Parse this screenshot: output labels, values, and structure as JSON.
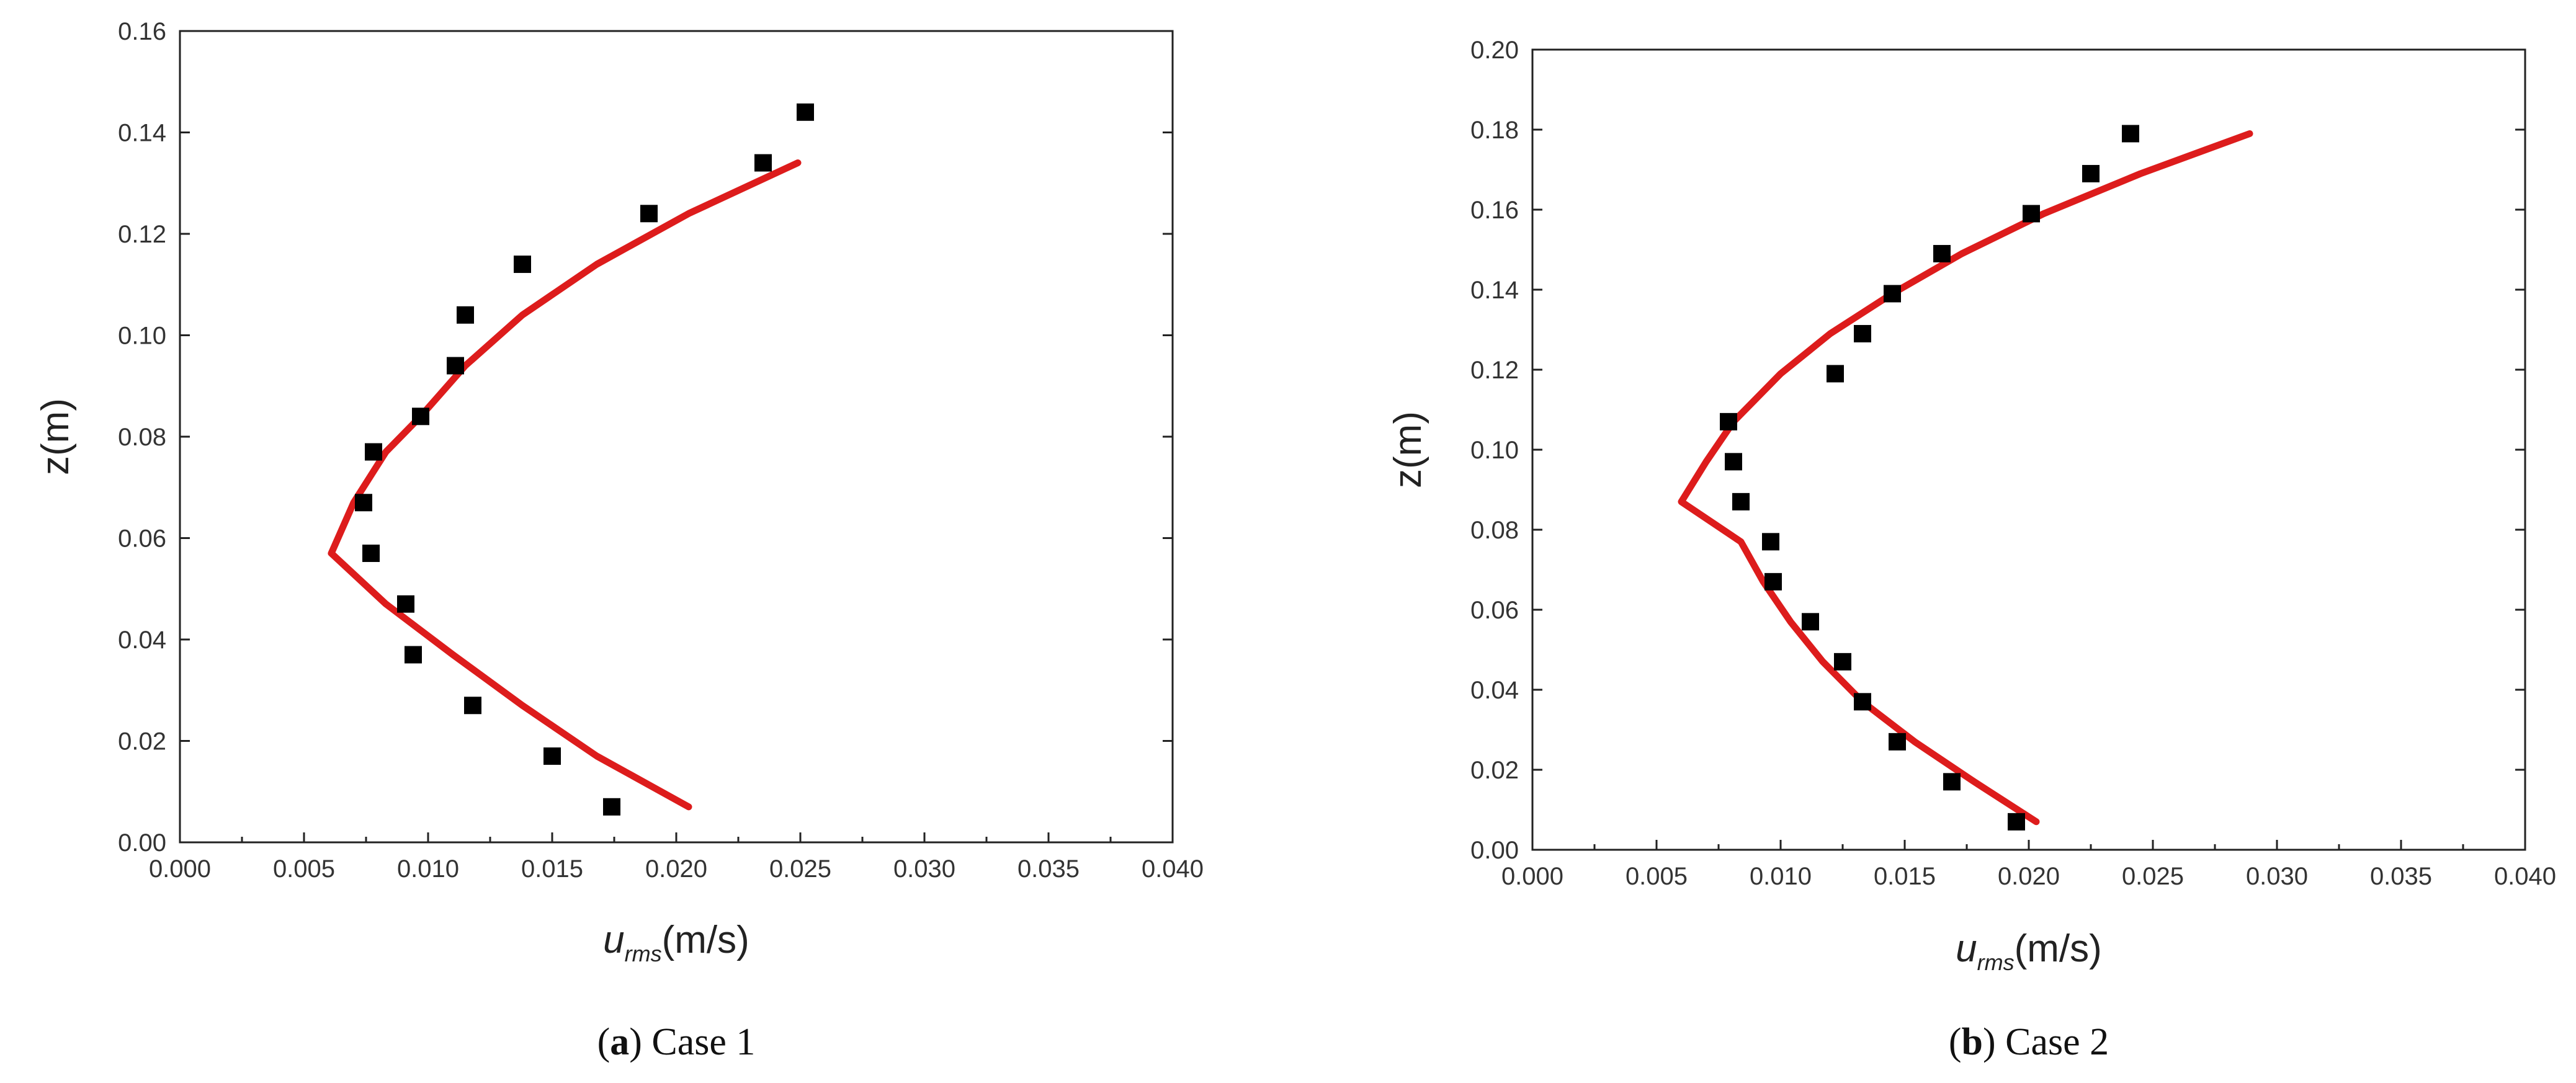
{
  "charts": [
    {
      "caption_letter": "a",
      "caption_open": "(",
      "caption_close": ") ",
      "caption_text": "Case 1",
      "ylabel": "z(m)",
      "xlabel_main": "u",
      "xlabel_sub": "rms",
      "xlabel_unit": "(m/s)"
    },
    {
      "caption_letter": "b",
      "caption_open": "(",
      "caption_close": ") ",
      "caption_text": "Case 2",
      "ylabel": "z(m)",
      "xlabel_main": "u",
      "xlabel_sub": "rms",
      "xlabel_unit": "(m/s)"
    }
  ],
  "chart_data": [
    {
      "type": "scatter",
      "title": "",
      "xlabel": "u_rms(m/s)",
      "ylabel": "z(m)",
      "xlim": [
        0.0,
        0.04
      ],
      "ylim": [
        0.0,
        0.16
      ],
      "x_ticks": [
        "0.000",
        "0.005",
        "0.010",
        "0.015",
        "0.020",
        "0.025",
        "0.030",
        "0.035",
        "0.040"
      ],
      "y_ticks": [
        "0.00",
        "0.02",
        "0.04",
        "0.06",
        "0.08",
        "0.10",
        "0.12",
        "0.14",
        "0.16"
      ],
      "grid": false,
      "legend": "none",
      "series": [
        {
          "kind": "markers",
          "color": "#000000",
          "marker": "square",
          "points": [
            [
              0.0252,
              0.144
            ],
            [
              0.0235,
              0.134
            ],
            [
              0.0189,
              0.124
            ],
            [
              0.0138,
              0.114
            ],
            [
              0.0115,
              0.104
            ],
            [
              0.0111,
              0.094
            ],
            [
              0.0097,
              0.084
            ],
            [
              0.0078,
              0.077
            ],
            [
              0.0074,
              0.067
            ],
            [
              0.0077,
              0.057
            ],
            [
              0.0091,
              0.047
            ],
            [
              0.0094,
              0.037
            ],
            [
              0.0118,
              0.027
            ],
            [
              0.015,
              0.017
            ],
            [
              0.0174,
              0.007
            ]
          ]
        },
        {
          "kind": "line",
          "color": "#dd1c1c",
          "points": [
            [
              0.0205,
              0.007
            ],
            [
              0.0168,
              0.017
            ],
            [
              0.0138,
              0.027
            ],
            [
              0.011,
              0.037
            ],
            [
              0.0083,
              0.047
            ],
            [
              0.0061,
              0.057
            ],
            [
              0.007,
              0.067
            ],
            [
              0.0083,
              0.077
            ],
            [
              0.0097,
              0.084
            ],
            [
              0.0115,
              0.094
            ],
            [
              0.0138,
              0.104
            ],
            [
              0.0168,
              0.114
            ],
            [
              0.0205,
              0.124
            ],
            [
              0.0249,
              0.134
            ]
          ]
        }
      ]
    },
    {
      "type": "scatter",
      "title": "",
      "xlabel": "u_rms(m/s)",
      "ylabel": "z(m)",
      "xlim": [
        0.0,
        0.04
      ],
      "ylim": [
        0.0,
        0.2
      ],
      "x_ticks": [
        "0.000",
        "0.005",
        "0.010",
        "0.015",
        "0.020",
        "0.025",
        "0.030",
        "0.035",
        "0.040"
      ],
      "y_ticks": [
        "0.00",
        "0.02",
        "0.04",
        "0.06",
        "0.08",
        "0.10",
        "0.12",
        "0.14",
        "0.16",
        "0.18",
        "0.20"
      ],
      "grid": false,
      "legend": "none",
      "series": [
        {
          "kind": "markers",
          "color": "#000000",
          "marker": "square",
          "points": [
            [
              0.0241,
              0.179
            ],
            [
              0.0225,
              0.169
            ],
            [
              0.0201,
              0.159
            ],
            [
              0.0165,
              0.149
            ],
            [
              0.0145,
              0.139
            ],
            [
              0.0133,
              0.129
            ],
            [
              0.0122,
              0.119
            ],
            [
              0.0079,
              0.107
            ],
            [
              0.0081,
              0.097
            ],
            [
              0.0084,
              0.087
            ],
            [
              0.0096,
              0.077
            ],
            [
              0.0097,
              0.067
            ],
            [
              0.0112,
              0.057
            ],
            [
              0.0125,
              0.047
            ],
            [
              0.0133,
              0.037
            ],
            [
              0.0147,
              0.027
            ],
            [
              0.0169,
              0.017
            ],
            [
              0.0195,
              0.007
            ]
          ]
        },
        {
          "kind": "line",
          "color": "#dd1c1c",
          "points": [
            [
              0.0203,
              0.007
            ],
            [
              0.0178,
              0.017
            ],
            [
              0.0154,
              0.027
            ],
            [
              0.0133,
              0.037
            ],
            [
              0.0117,
              0.047
            ],
            [
              0.0104,
              0.057
            ],
            [
              0.0093,
              0.067
            ],
            [
              0.0084,
              0.077
            ],
            [
              0.006,
              0.087
            ],
            [
              0.007,
              0.097
            ],
            [
              0.0081,
              0.107
            ],
            [
              0.01,
              0.119
            ],
            [
              0.012,
              0.129
            ],
            [
              0.0145,
              0.139
            ],
            [
              0.0173,
              0.149
            ],
            [
              0.0206,
              0.159
            ],
            [
              0.0245,
              0.169
            ],
            [
              0.0289,
              0.179
            ]
          ]
        }
      ]
    }
  ]
}
